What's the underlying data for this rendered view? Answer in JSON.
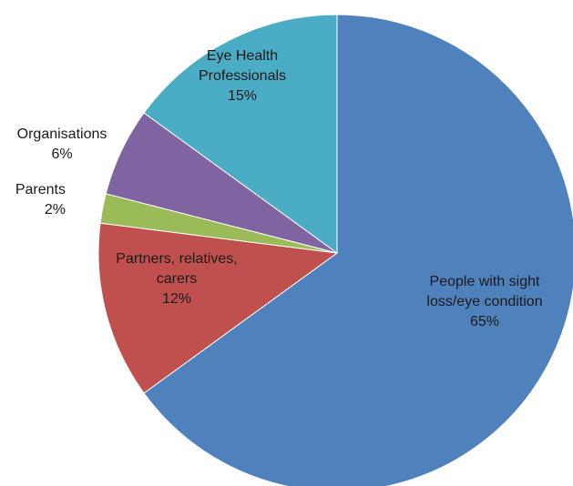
{
  "chart_data": {
    "type": "pie",
    "slices": [
      {
        "label_lines": [
          "People with sight",
          "loss/eye condition"
        ],
        "percent_label": "65%",
        "value": 65,
        "color": "#4f81bd"
      },
      {
        "label_lines": [
          "Partners, relatives,",
          "carers"
        ],
        "percent_label": "12%",
        "value": 12,
        "color": "#c0504d"
      },
      {
        "label_lines": [
          "Parents"
        ],
        "percent_label": "2%",
        "value": 2,
        "color": "#9bbb59"
      },
      {
        "label_lines": [
          "Organisations"
        ],
        "percent_label": "6%",
        "value": 6,
        "color": "#8064a2"
      },
      {
        "label_lines": [
          "Eye Health",
          "Professionals"
        ],
        "percent_label": "15%",
        "value": 15,
        "color": "#4bacc6"
      }
    ]
  }
}
